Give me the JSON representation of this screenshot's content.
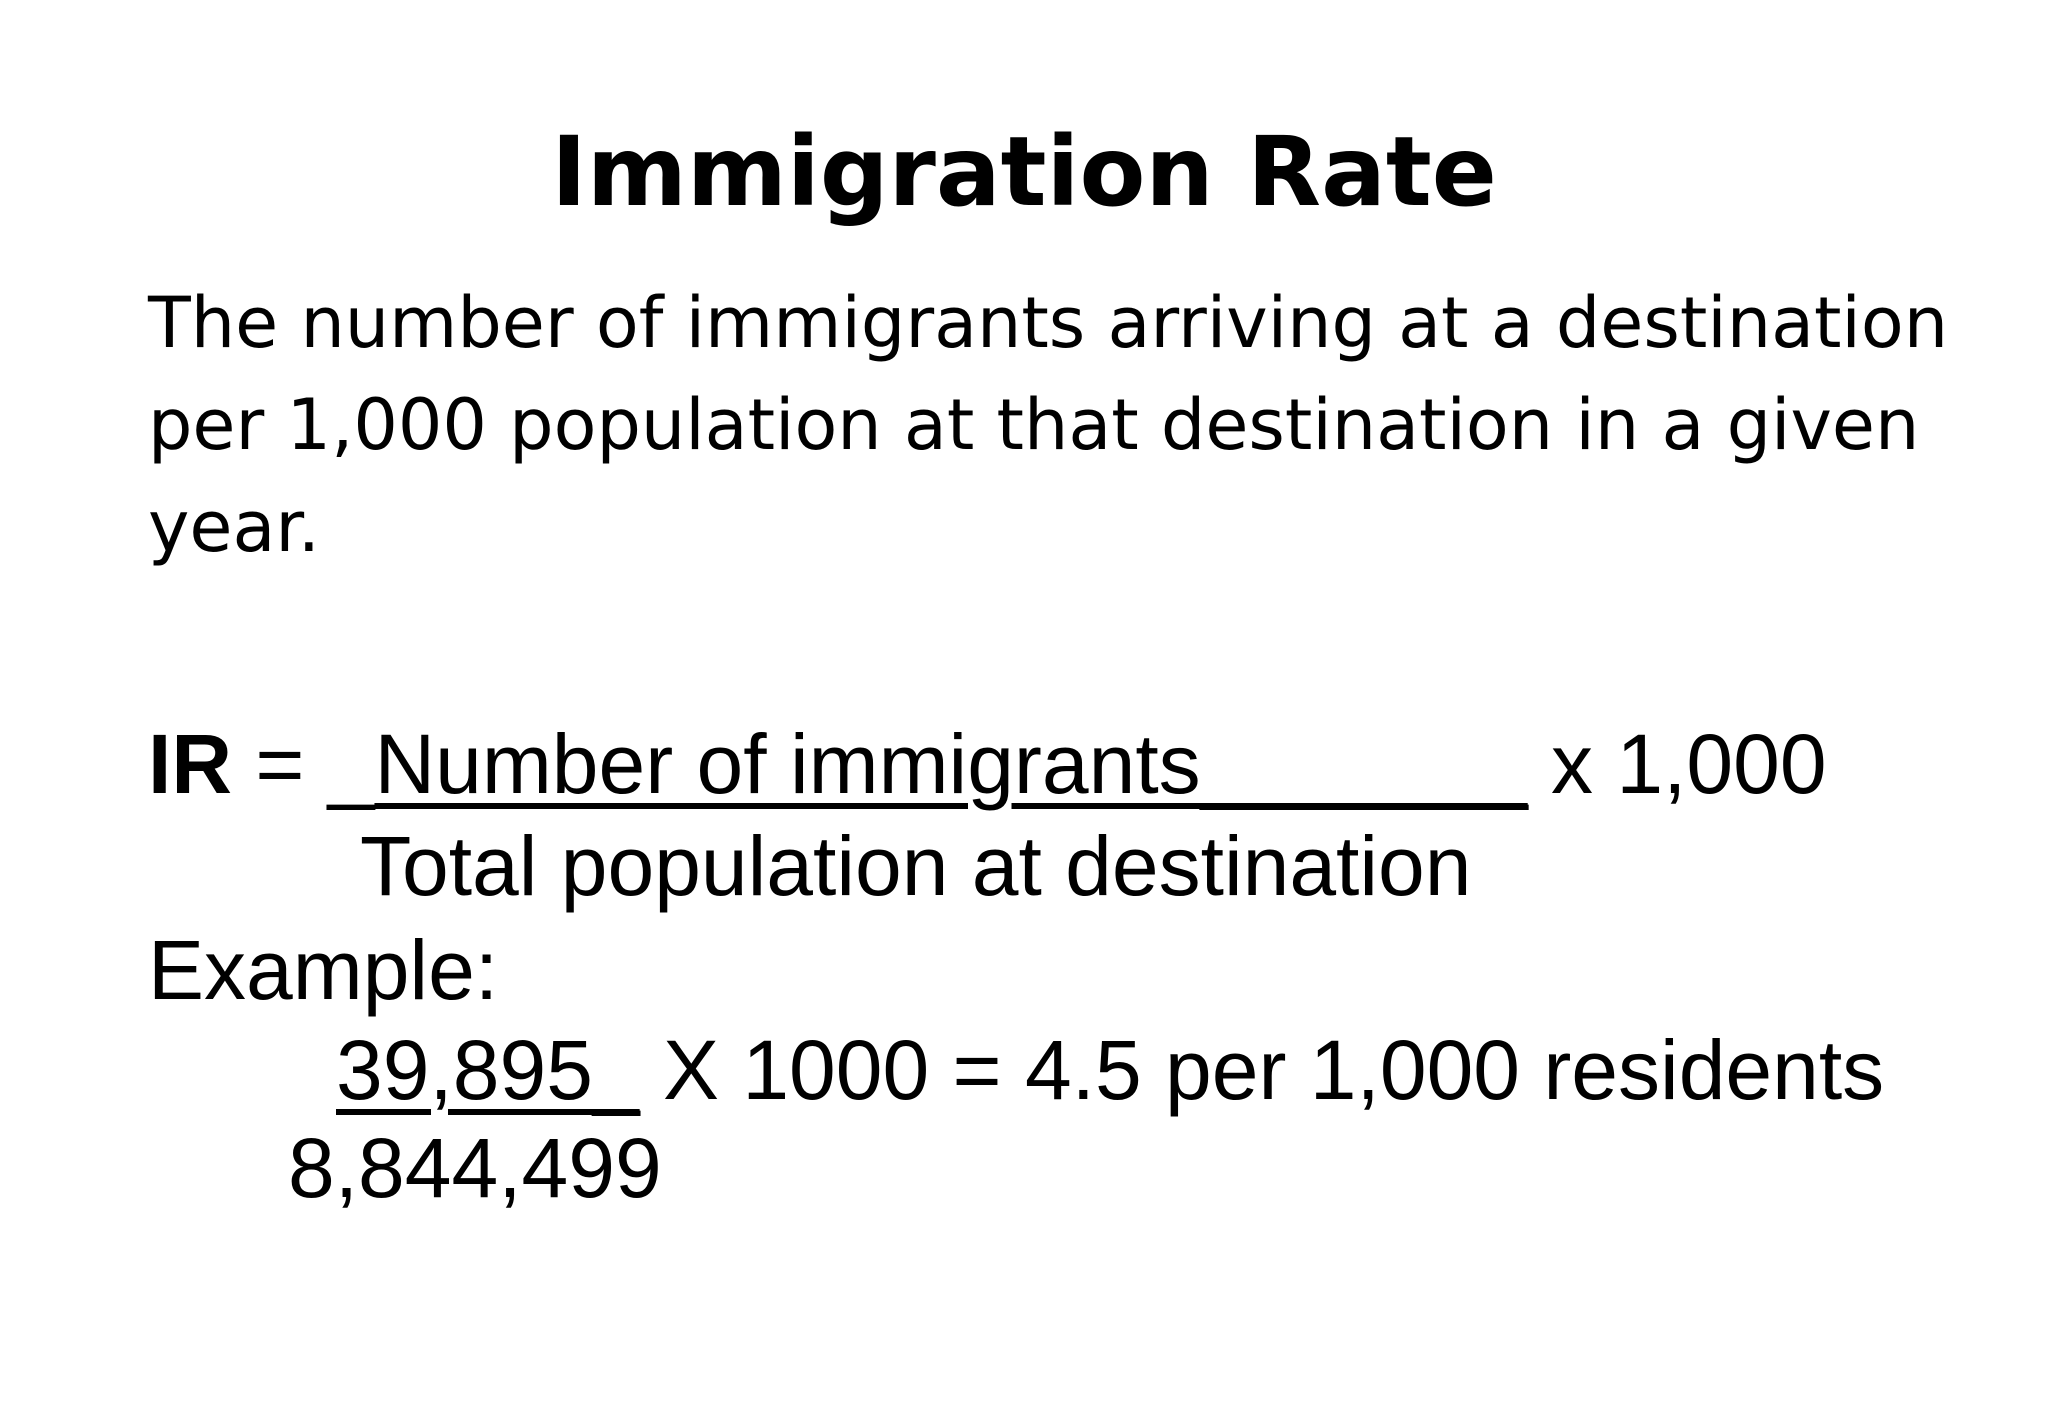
{
  "slide": {
    "title": "Immigration Rate",
    "definition": {
      "line1": "The number of immigrants arriving at a destination",
      "line2": "per 1,000 population at that destination in a given",
      "line3": "year."
    },
    "formula": {
      "label": "IR",
      "equals": " = ",
      "lead_blank": "_",
      "numerator": "Number of immigrants_______",
      "multiplier": " x 1,000",
      "denominator": "Total population at destination"
    },
    "example": {
      "label": "Example:",
      "numerator": "39,895_",
      "result": " X 1000 = 4.5 per 1,000 residents",
      "denominator": "8,844,499"
    }
  }
}
